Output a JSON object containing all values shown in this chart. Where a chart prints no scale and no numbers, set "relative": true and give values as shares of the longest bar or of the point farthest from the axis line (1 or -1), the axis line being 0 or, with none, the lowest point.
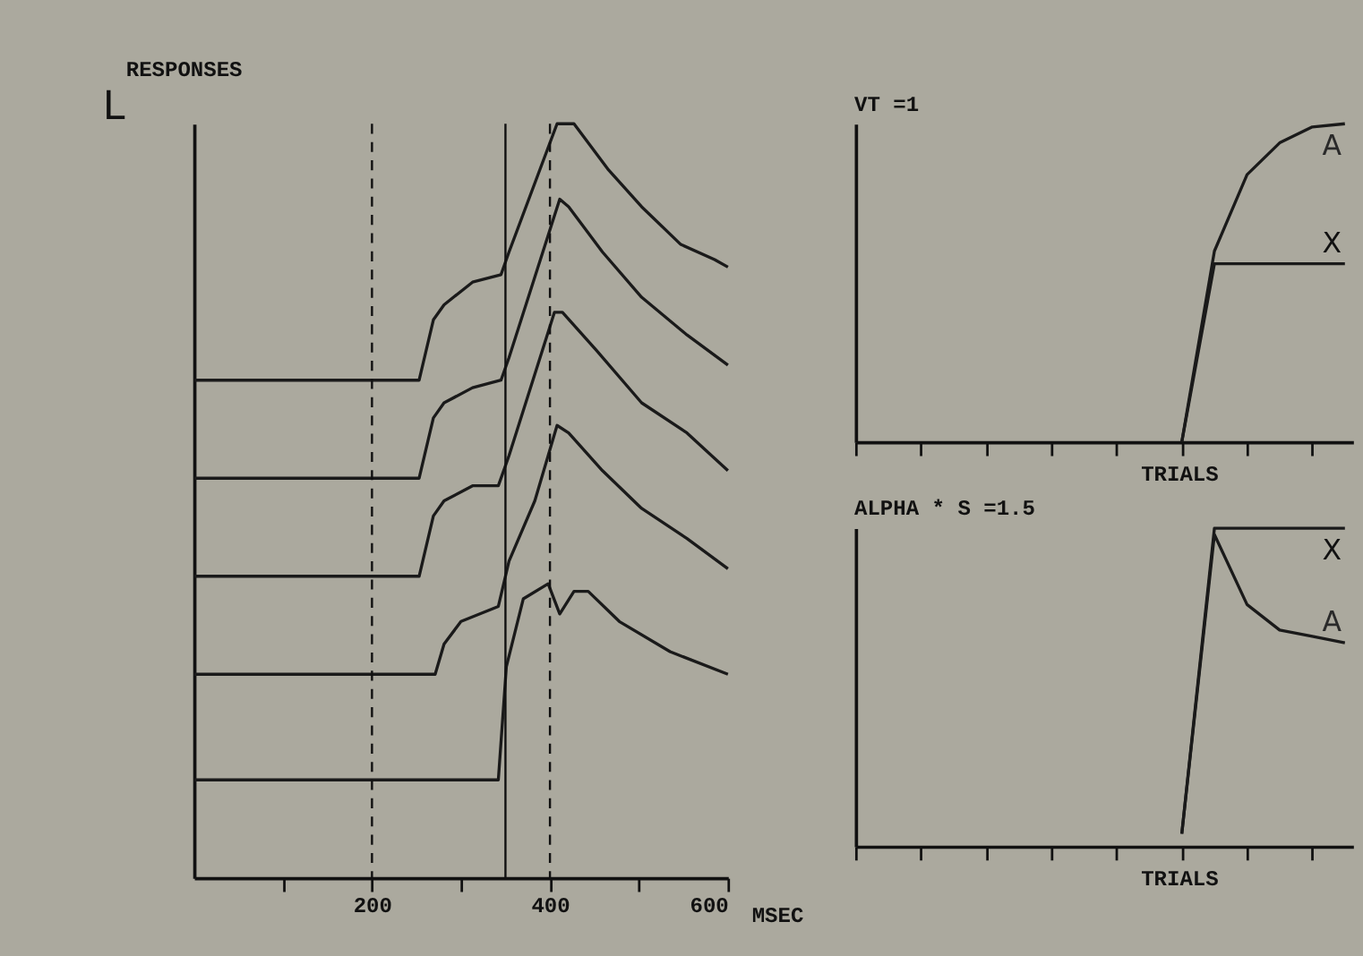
{
  "chart_data": [
    {
      "type": "line",
      "title": "RESPONSES",
      "xlabel": "MSEC",
      "annotations": [
        "L"
      ],
      "relative": true,
      "xlim": [
        0,
        600
      ],
      "xticks": [
        {
          "value": 100,
          "label": null
        },
        200,
        {
          "value": 300,
          "label": null
        },
        400,
        {
          "value": 500,
          "label": null
        },
        600
      ],
      "tick_labels": "x",
      "line_style": "solid",
      "ref_lines": [
        {
          "axis": "x",
          "value": 200,
          "line_style": "dashed"
        },
        {
          "axis": "x",
          "value": 350,
          "line_style": "solid"
        },
        {
          "axis": "x",
          "value": 400,
          "line_style": "dashed"
        }
      ],
      "series": [
        {
          "color": "#1a1a1a",
          "x": [
            0,
            253,
            269,
            281,
            313,
            345,
            354,
            408,
            427,
            465,
            503,
            547,
            585,
            600
          ],
          "values": [
            0.66,
            0.66,
            0.74,
            0.76,
            0.79,
            0.8,
            0.83,
            1.0,
            1.0,
            0.94,
            0.89,
            0.84,
            0.82,
            0.81
          ]
        },
        {
          "color": "#1a1a1a",
          "x": [
            0,
            253,
            269,
            281,
            313,
            345,
            354,
            411,
            421,
            459,
            503,
            554,
            600
          ],
          "values": [
            0.53,
            0.53,
            0.61,
            0.63,
            0.65,
            0.66,
            0.69,
            0.9,
            0.89,
            0.83,
            0.77,
            0.72,
            0.68
          ]
        },
        {
          "color": "#1a1a1a",
          "x": [
            0,
            253,
            269,
            281,
            313,
            342,
            354,
            405,
            414,
            452,
            503,
            554,
            600
          ],
          "values": [
            0.4,
            0.4,
            0.48,
            0.5,
            0.52,
            0.52,
            0.56,
            0.75,
            0.75,
            0.7,
            0.63,
            0.59,
            0.54
          ]
        },
        {
          "color": "#1a1a1a",
          "x": [
            0,
            271,
            281,
            300,
            342,
            354,
            383,
            408,
            421,
            459,
            503,
            554,
            600
          ],
          "values": [
            0.27,
            0.27,
            0.31,
            0.34,
            0.36,
            0.42,
            0.5,
            0.6,
            0.59,
            0.54,
            0.49,
            0.45,
            0.41
          ]
        },
        {
          "color": "#1a1a1a",
          "x": [
            0,
            342,
            351,
            370,
            398,
            411,
            427,
            443,
            478,
            535,
            600
          ],
          "values": [
            0.13,
            0.13,
            0.28,
            0.37,
            0.39,
            0.35,
            0.38,
            0.38,
            0.34,
            0.3,
            0.27
          ]
        }
      ]
    },
    {
      "type": "line",
      "title": "VT =1",
      "xlabel": "TRIALS",
      "relative": true,
      "tick_labels": false,
      "line_style": "solid",
      "categories": [
        null,
        null,
        null,
        null,
        null,
        null,
        null,
        null,
        null,
        null,
        null,
        null,
        null,
        null,
        null,
        null
      ],
      "series": [
        {
          "name": "A",
          "color": "#2a2a2a",
          "values": [
            null,
            null,
            null,
            null,
            null,
            null,
            null,
            null,
            null,
            null,
            0,
            0.6,
            0.84,
            0.94,
            0.99,
            1.0
          ]
        },
        {
          "name": "X",
          "color": "#111111",
          "values": [
            null,
            null,
            null,
            null,
            null,
            null,
            null,
            null,
            null,
            null,
            0,
            0.56,
            0.56,
            0.56,
            0.56,
            0.56
          ]
        }
      ]
    },
    {
      "type": "line",
      "title": "ALPHA * S =1.5",
      "xlabel": "TRIALS",
      "relative": true,
      "tick_labels": false,
      "line_style": "solid",
      "categories": [
        null,
        null,
        null,
        null,
        null,
        null,
        null,
        null,
        null,
        null,
        null,
        null,
        null,
        null,
        null,
        null
      ],
      "series": [
        {
          "name": "X",
          "color": "#111111",
          "values": [
            null,
            null,
            null,
            null,
            null,
            null,
            null,
            null,
            null,
            null,
            0.04,
            1.0,
            1.0,
            1.0,
            1.0,
            1.0
          ]
        },
        {
          "name": "A",
          "color": "#2a2a2a",
          "values": [
            null,
            null,
            null,
            null,
            null,
            null,
            null,
            null,
            null,
            null,
            0.04,
            0.98,
            0.76,
            0.68,
            0.66,
            0.64
          ]
        }
      ]
    }
  ]
}
